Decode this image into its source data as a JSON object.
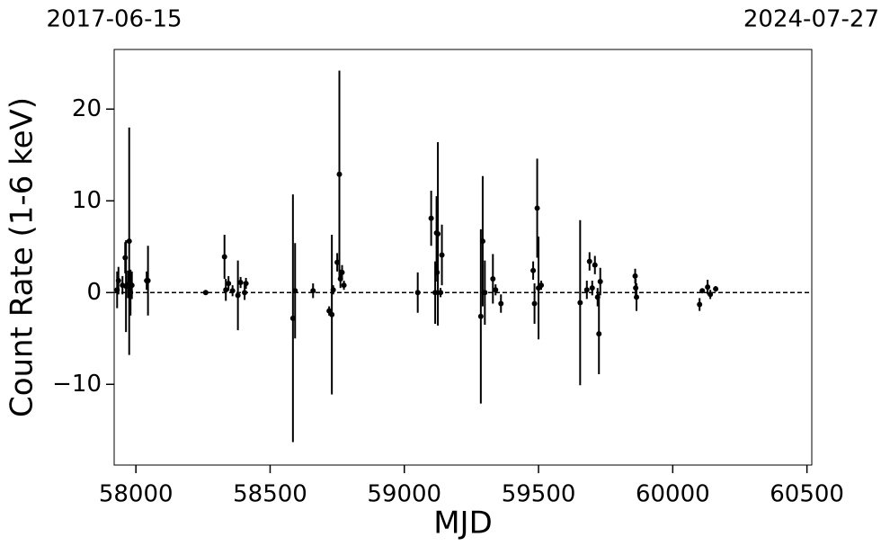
{
  "chart_data": {
    "type": "scatter",
    "xlabel": "MJD",
    "ylabel": "Count Rate (1-6 keV)",
    "xlim": [
      57919,
      60518
    ],
    "ylim": [
      -18.8,
      26.5
    ],
    "xticks": [
      58000,
      58500,
      59000,
      59500,
      60000,
      60500
    ],
    "yticks": [
      {
        "value": -10,
        "label": "−10"
      },
      0,
      10,
      20
    ],
    "x2ticks": [
      {
        "value": 57919,
        "label": "2017-06-15"
      },
      {
        "value": 60518,
        "label": "2024-07-27"
      }
    ],
    "hline": 0,
    "color": "#000000",
    "x": [
      57930,
      57935,
      57950,
      57960,
      57963,
      57970,
      57975,
      57980,
      57985,
      58040,
      58045,
      58260,
      58330,
      58335,
      58345,
      58360,
      58380,
      58390,
      58405,
      58410,
      58585,
      58593,
      58660,
      58720,
      58730,
      58735,
      58750,
      58758,
      58762,
      58768,
      58775,
      59050,
      59100,
      59115,
      59120,
      59122,
      59125,
      59135,
      59140,
      59285,
      59292,
      59300,
      59330,
      59340,
      59360,
      59480,
      59485,
      59495,
      59500,
      59510,
      59655,
      59680,
      59690,
      59700,
      59710,
      59720,
      59725,
      59730,
      59860,
      59862,
      59865,
      60100,
      60110,
      60130,
      60140,
      60160
    ],
    "values": [
      0.3,
      1.3,
      0.8,
      3.8,
      0.7,
      0.9,
      5.6,
      0.0,
      0.8,
      1.3,
      1.3,
      0.0,
      3.9,
      0.3,
      1.0,
      0.2,
      -0.3,
      1.1,
      0.0,
      1.0,
      -2.8,
      0.2,
      0.2,
      -2.0,
      -2.4,
      0.3,
      3.3,
      12.9,
      1.5,
      2.2,
      0.8,
      0.0,
      8.1,
      0.0,
      6.5,
      2.2,
      6.4,
      0.0,
      4.1,
      -2.6,
      5.6,
      0.0,
      1.5,
      0.3,
      -1.2,
      2.4,
      -1.2,
      9.2,
      0.5,
      0.8,
      -1.1,
      0.3,
      3.4,
      0.5,
      3.0,
      -0.5,
      -4.5,
      1.2,
      1.8,
      0.5,
      -0.5,
      -1.3,
      0.2,
      0.6,
      -0.2,
      0.4
    ],
    "errors": [
      2,
      1.5,
      1,
      1.7,
      5,
      1.5,
      12.4,
      2.5,
      1.5,
      1,
      3.8,
      0.2,
      2.4,
      1.2,
      0.8,
      0.6,
      3.8,
      0.6,
      0.8,
      0.6,
      13.5,
      5.2,
      0.8,
      0.5,
      8.7,
      0.5,
      1,
      11.3,
      1,
      0.8,
      0.5,
      2.2,
      3,
      3.4,
      4,
      1,
      10,
      0.5,
      3.3,
      9.5,
      7.1,
      3.5,
      2.7,
      0.6,
      1,
      1,
      2.2,
      5.4,
      5.6,
      0.5,
      9,
      1,
      1,
      0.8,
      1,
      1,
      4.4,
      1.5,
      0.8,
      1,
      1.5,
      0.7,
      0.2,
      0.8,
      0.5,
      0.3
    ]
  }
}
